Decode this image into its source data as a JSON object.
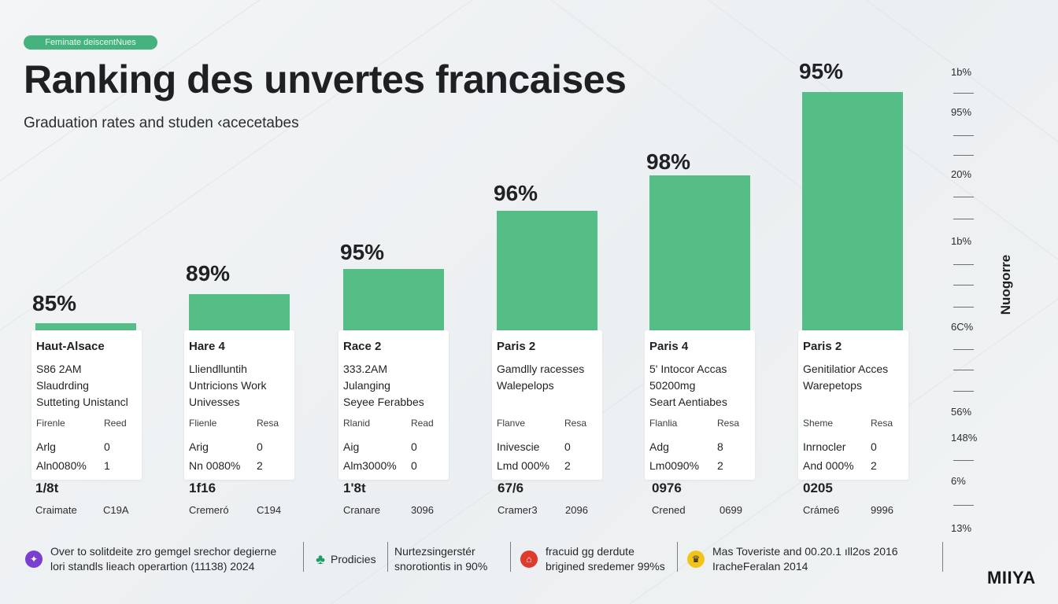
{
  "badge": "Feminate deiscentNues",
  "title": "Ranking des unvertes francaises",
  "subtitle": "Graduation rates and studen ‹acecetabes",
  "chart_data": {
    "type": "bar",
    "categories": [
      "Haut-Alsace",
      "Hare  4",
      "Race  2",
      "Paris 2",
      "Paris 4",
      "Paris 2"
    ],
    "value_labels": [
      "85%",
      "89%",
      "95%",
      "96%",
      "98%",
      "95%"
    ],
    "values": [
      85,
      89,
      95,
      96,
      98,
      95
    ],
    "axis_title": "Nuogorre",
    "axis_labels": [
      "1b%",
      "95%",
      "20%",
      "1b%",
      "6C%",
      "56%",
      "148%",
      "6%",
      "13%"
    ]
  },
  "cards": [
    {
      "name": "Haut-Alsace",
      "l1": "S86 2AM",
      "l2": "Slaudrding",
      "l3": "Sutteting Unistancl",
      "h1": "Firenle",
      "h2": "Reed",
      "r1a": "Arlg",
      "r1b": "0",
      "r2a": "Aln0080%",
      "r2b": "1",
      "big": "1/8t",
      "sm1": "Craimate",
      "sm2": "C19A"
    },
    {
      "name": "Hare  4",
      "l1": "Lliendlluntih",
      "l2": "Untricions Work",
      "l3": "Univesses",
      "h1": "Flienle",
      "h2": "Resa",
      "r1a": "Arig",
      "r1b": "0",
      "r2a": "Nn 0080%",
      "r2b": "2",
      "big": "1f16",
      "sm1": "Cremeró",
      "sm2": "C194"
    },
    {
      "name": "Race  2",
      "l1": "333.2AM",
      "l2": "Julanging",
      "l3": "Seyee Ferabbes",
      "h1": "Rlanid",
      "h2": "Read",
      "r1a": "Aig",
      "r1b": "0",
      "r2a": "Alm3000%",
      "r2b": "0",
      "big": "1'8t",
      "sm1": "Cranare",
      "sm2": "3096"
    },
    {
      "name": "Paris 2",
      "l1": "Gamdlly racesses",
      "l2": "Walepelops",
      "l3": "",
      "h1": "Flanve",
      "h2": "Resa",
      "r1a": "Inivescie",
      "r1b": "0",
      "r2a": "Lmd 000%",
      "r2b": "2",
      "big": "67/6",
      "sm1": "Cramer3",
      "sm2": "2096"
    },
    {
      "name": "Paris 4",
      "l1": "5' Intocor Accas",
      "l2": "50200mg",
      "l3": "Seart Aentiabes",
      "h1": "Flanlia",
      "h2": "Resa",
      "r1a": "Adg",
      "r1b": "8",
      "r2a": "Lm0090%",
      "r2b": "2",
      "big": "0976",
      "sm1": "Crened",
      "sm2": "0699"
    },
    {
      "name": "Paris 2",
      "l1": "Genitilatior Acces",
      "l2": "Warepetops",
      "l3": "",
      "h1": "Sheme",
      "h2": "Resa",
      "r1a": "Inrnocler",
      "r1b": "0",
      "r2a": "And 000%",
      "r2b": "2",
      "big": "0205",
      "sm1": "Cráme6",
      "sm2": "9996"
    }
  ],
  "footer": [
    {
      "line1": "Over to solitdeite zro gemgel srechor degierne",
      "line2": "lori standls lieach operartion (11138) 2024",
      "icon": "award-icon",
      "color": "#7a3fd1"
    },
    {
      "line1": "Prodicies",
      "line2": "",
      "icon": "tree-icon",
      "color": "#1f9b6b"
    },
    {
      "line1": "Nurtezsingerstér",
      "line2": "snorotiontis in 90%",
      "icon": "",
      "color": ""
    },
    {
      "line1": "fracuid gg derdute",
      "line2": "brigined sredemer 99%s",
      "icon": "school-icon",
      "color": "#e03a2e"
    },
    {
      "line1": "Mas Toveriste and  00.20.1 ıll2os 2016",
      "line2": "IracheFeralan 2014",
      "icon": "crown-icon",
      "color": "#f2c318"
    }
  ],
  "brand": "MIIYA"
}
